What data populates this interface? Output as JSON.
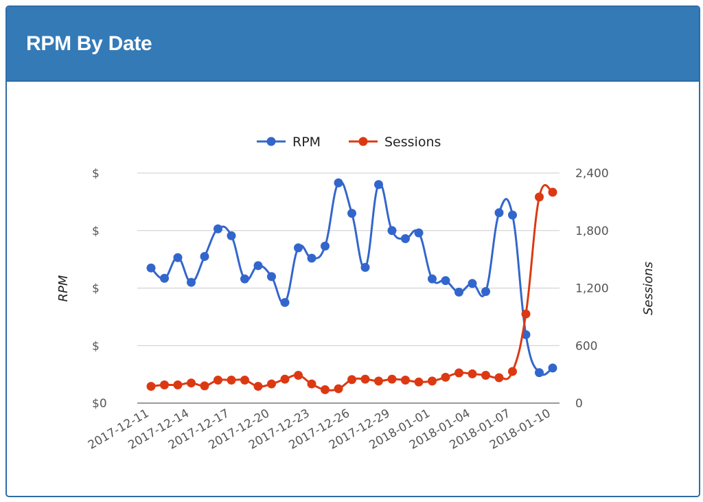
{
  "panel": {
    "title": "RPM By Date"
  },
  "colors": {
    "rpm": "#3366cc",
    "sessions": "#dc3912",
    "header": "#337ab7",
    "grid": "#cccccc"
  },
  "chart_data": {
    "type": "line",
    "title": "RPM By Date",
    "legend": {
      "position": "top"
    },
    "grid": true,
    "x": [
      "2017-12-11",
      "2017-12-12",
      "2017-12-13",
      "2017-12-14",
      "2017-12-15",
      "2017-12-16",
      "2017-12-17",
      "2017-12-18",
      "2017-12-19",
      "2017-12-20",
      "2017-12-21",
      "2017-12-22",
      "2017-12-23",
      "2017-12-24",
      "2017-12-25",
      "2017-12-26",
      "2017-12-27",
      "2017-12-28",
      "2017-12-29",
      "2017-12-30",
      "2017-12-31",
      "2018-01-01",
      "2018-01-02",
      "2018-01-03",
      "2018-01-04",
      "2018-01-05",
      "2018-01-06",
      "2018-01-07",
      "2018-01-08",
      "2018-01-09",
      "2018-01-10"
    ],
    "x_tick_labels": [
      "2017-12-11",
      "2017-12-14",
      "2017-12-17",
      "2017-12-20",
      "2017-12-23",
      "2017-12-26",
      "2017-12-29",
      "2018-01-01",
      "2018-01-04",
      "2018-01-07",
      "2018-01-10"
    ],
    "y_left": {
      "label": "RPM",
      "ticks": [
        "$0",
        "$",
        "$",
        "$",
        "$"
      ],
      "range": [
        0,
        4
      ]
    },
    "y_right": {
      "label": "Sessions",
      "ticks": [
        "0",
        "600",
        "1,200",
        "1,800",
        "2,400"
      ],
      "range": [
        0,
        2400
      ]
    },
    "series": [
      {
        "name": "RPM",
        "axis": "left",
        "values": [
          2.35,
          2.17,
          2.53,
          2.1,
          2.55,
          3.03,
          2.91,
          2.16,
          2.39,
          2.2,
          1.75,
          2.7,
          2.52,
          2.73,
          3.83,
          3.3,
          2.36,
          3.8,
          3.0,
          2.86,
          2.96,
          2.16,
          2.13,
          1.93,
          2.08,
          1.94,
          3.31,
          3.27,
          1.19,
          0.53,
          0.61
        ]
      },
      {
        "name": "Sessions",
        "axis": "right",
        "values": [
          175,
          190,
          190,
          210,
          180,
          240,
          240,
          240,
          175,
          200,
          250,
          290,
          200,
          140,
          150,
          245,
          250,
          230,
          250,
          240,
          220,
          230,
          270,
          315,
          305,
          290,
          265,
          330,
          930,
          2150,
          2200
        ]
      }
    ]
  }
}
